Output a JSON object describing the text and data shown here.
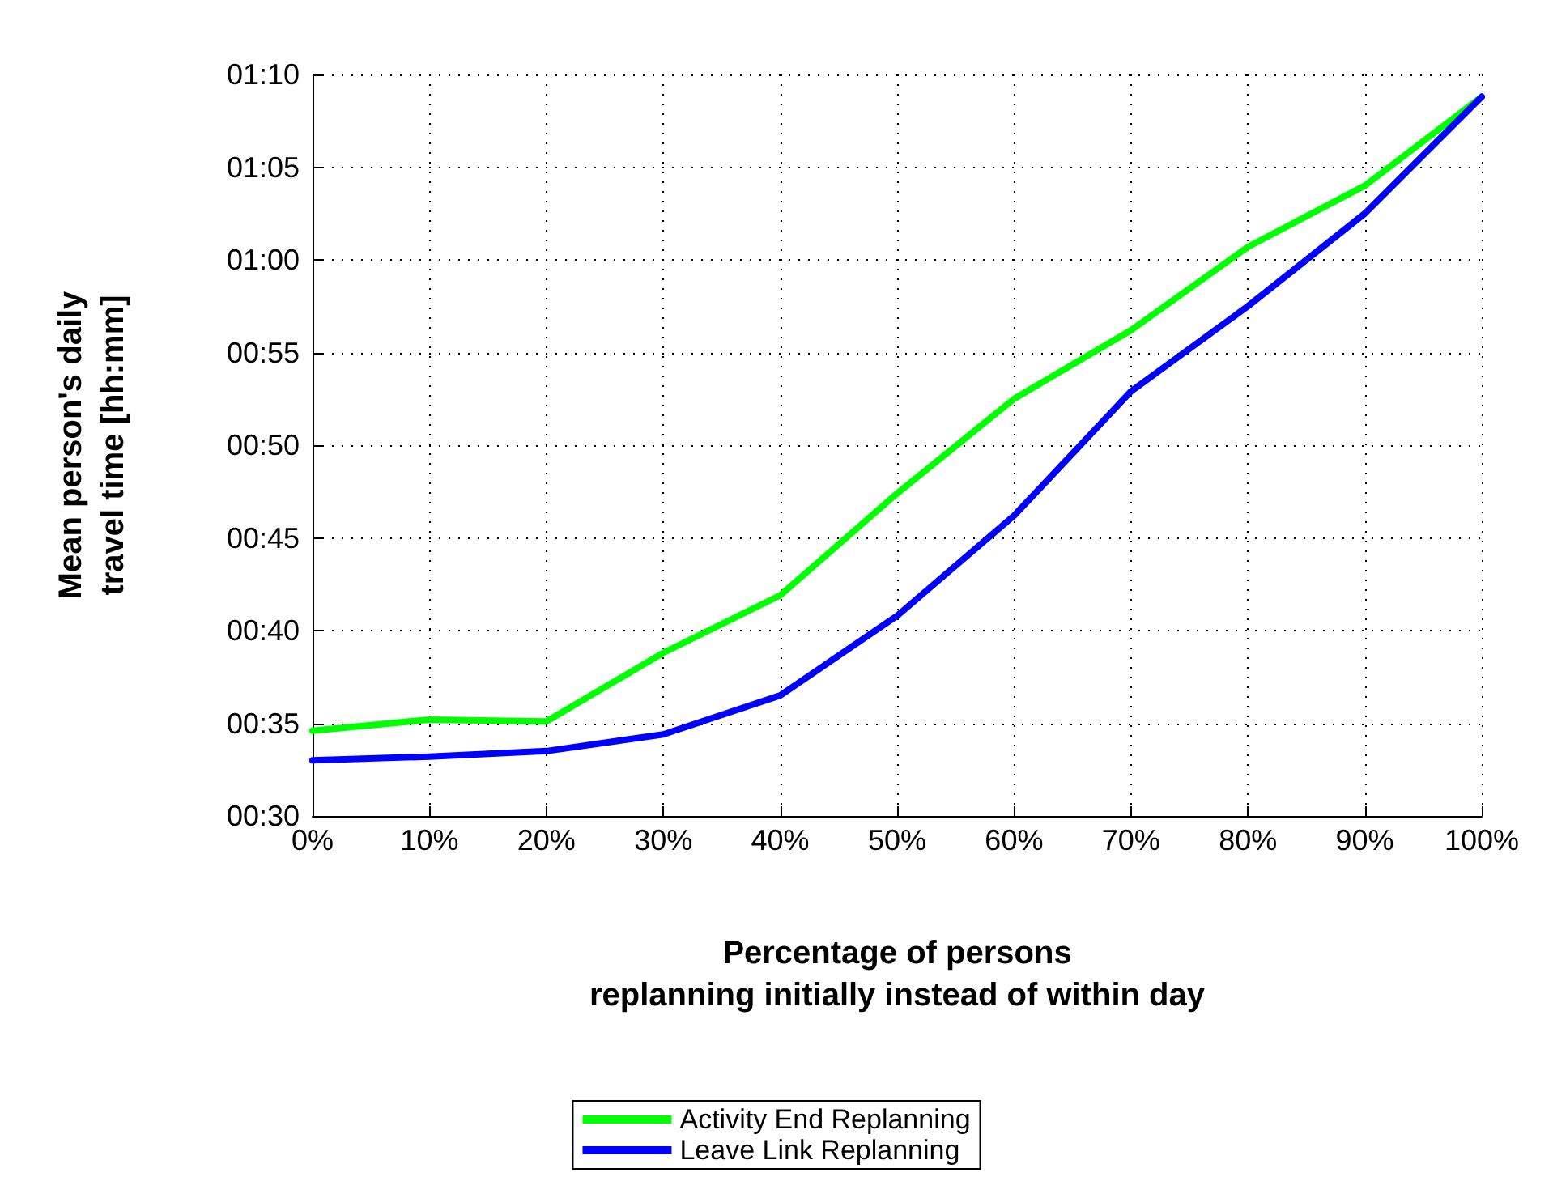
{
  "chart_data": {
    "type": "line",
    "xlabel": "Percentage of persons\nreplanning initially instead of within day",
    "ylabel": "Mean person's daily\ntravel time [hh:mm]",
    "categories": [
      "0%",
      "10%",
      "20%",
      "30%",
      "40%",
      "50%",
      "60%",
      "70%",
      "80%",
      "90%",
      "100%"
    ],
    "series": [
      {
        "name": "Activity End Replanning",
        "color": "#00ff00",
        "values": [
          34.6,
          35.2,
          35.1,
          38.8,
          41.9,
          47.4,
          52.5,
          56.2,
          60.7,
          64.0,
          68.8
        ]
      },
      {
        "name": "Leave Link Replanning",
        "color": "#0000ff",
        "values": [
          33.0,
          33.2,
          33.5,
          34.4,
          36.5,
          40.8,
          46.2,
          52.9,
          57.5,
          62.5,
          68.8
        ]
      }
    ],
    "ylim": [
      30,
      70
    ],
    "yticks": [
      {
        "value": 30,
        "label": "00:30"
      },
      {
        "value": 35,
        "label": "00:35"
      },
      {
        "value": 40,
        "label": "00:40"
      },
      {
        "value": 45,
        "label": "00:45"
      },
      {
        "value": 50,
        "label": "00:50"
      },
      {
        "value": 55,
        "label": "00:55"
      },
      {
        "value": 60,
        "label": "01:00"
      },
      {
        "value": 65,
        "label": "01:05"
      },
      {
        "value": 70,
        "label": "01:10"
      }
    ],
    "grid": true,
    "legend": "bottom",
    "marker": "none",
    "line_style": "solid"
  }
}
